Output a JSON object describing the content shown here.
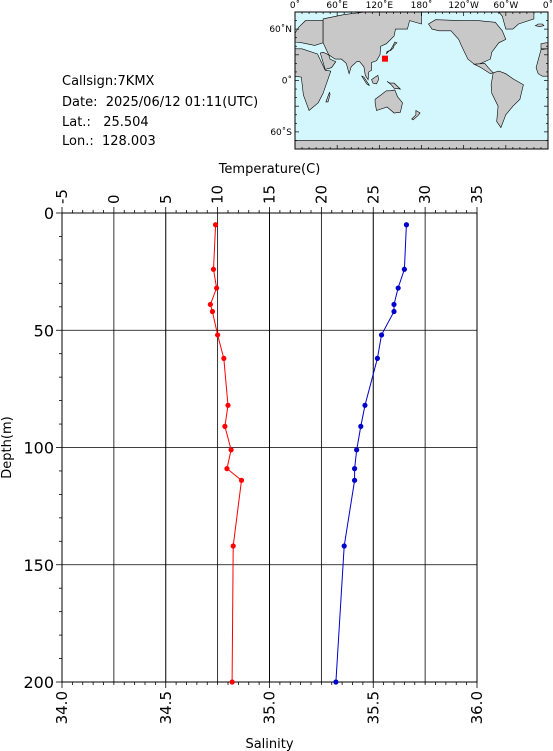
{
  "station": {
    "callsign": "Callsign:7KMX",
    "date": "Date:  2025/06/12 01:11(UTC)",
    "lat": "Lat.:   25.504",
    "lon": "Lon.:  128.003"
  },
  "map": {
    "top_labels": [
      "0˚",
      "60˚E",
      "120˚E",
      "180˚",
      "120˚W",
      "60˚W",
      "0˚"
    ],
    "left_labels": [
      "60˚N",
      "0˚",
      "60˚S"
    ],
    "ocean_color": "#d4f7fd",
    "land_color": "#c8c8c8",
    "marker_color": "#ff0000",
    "marker_lon": 128.003,
    "marker_lat": 25.504
  },
  "chart_data": {
    "type": "line",
    "ylabel": "Depth(m)",
    "ylim": [
      200,
      0
    ],
    "yticks": [
      0,
      50,
      100,
      150,
      200
    ],
    "x_top": {
      "label": "Temperature(C)",
      "range": [
        -5,
        35
      ],
      "ticks": [
        -5,
        0,
        5,
        10,
        15,
        20,
        25,
        30,
        35
      ]
    },
    "x_bottom": {
      "label": "Salinity",
      "range": [
        34.0,
        36.0
      ],
      "ticks": [
        "34.0",
        "34.5",
        "35.0",
        "35.5",
        "36.0"
      ]
    },
    "grid": true,
    "series": [
      {
        "axis": "top",
        "color": "#ff0000",
        "points": [
          [
            9.8,
            5
          ],
          [
            9.6,
            24
          ],
          [
            9.9,
            32
          ],
          [
            9.3,
            39
          ],
          [
            9.5,
            42
          ],
          [
            10.0,
            52
          ],
          [
            10.6,
            62
          ],
          [
            11.0,
            82
          ],
          [
            10.7,
            91
          ],
          [
            11.3,
            101
          ],
          [
            10.9,
            109
          ],
          [
            12.3,
            114
          ],
          [
            11.5,
            142
          ],
          [
            11.4,
            200
          ]
        ]
      },
      {
        "axis": "bottom",
        "color": "#0000cc",
        "points": [
          [
            35.66,
            5
          ],
          [
            35.65,
            24
          ],
          [
            35.62,
            32
          ],
          [
            35.6,
            39
          ],
          [
            35.6,
            42
          ],
          [
            35.54,
            52
          ],
          [
            35.52,
            62
          ],
          [
            35.46,
            82
          ],
          [
            35.44,
            91
          ],
          [
            35.42,
            101
          ],
          [
            35.41,
            109
          ],
          [
            35.41,
            114
          ],
          [
            35.36,
            142
          ],
          [
            35.32,
            200
          ]
        ]
      }
    ]
  }
}
